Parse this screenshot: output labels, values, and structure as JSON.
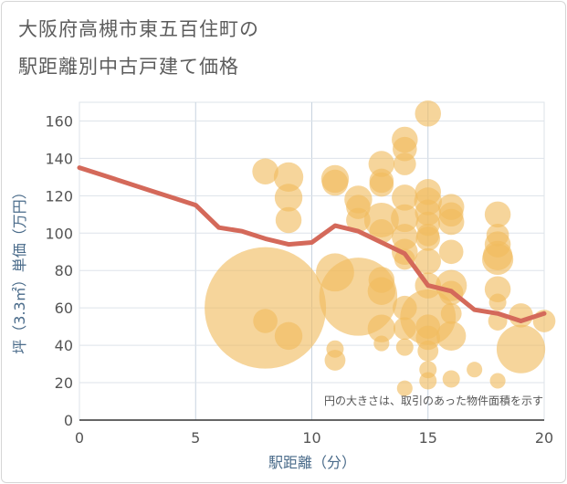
{
  "chart_data": {
    "type": "scatter",
    "title_line1": "大阪府高槻市東五百住町の",
    "title_line2": "駅距離別中古戸建て価格",
    "xlabel": "駅距離（分）",
    "ylabel": "坪（3.3㎡）単価（万円）",
    "xlim": [
      0,
      20
    ],
    "ylim": [
      0,
      170
    ],
    "xticks": [
      "0",
      "5",
      "10",
      "15",
      "20"
    ],
    "yticks": [
      "0",
      "20",
      "40",
      "60",
      "80",
      "100",
      "120",
      "140",
      "160"
    ],
    "xtick_values": [
      0,
      5,
      10,
      15,
      20
    ],
    "ytick_values": [
      0,
      20,
      40,
      60,
      80,
      100,
      120,
      140,
      160
    ],
    "note": "円の大きさは、取引のあった物件面積を示す",
    "bubble_color": "#f1bc5e",
    "line_color": "#d4695a",
    "bubbles": [
      {
        "x": 8,
        "y": 133,
        "s": 1.5
      },
      {
        "x": 8,
        "y": 60,
        "s": 7
      },
      {
        "x": 8,
        "y": 53,
        "s": 1.4
      },
      {
        "x": 9,
        "y": 130,
        "s": 1.7
      },
      {
        "x": 9,
        "y": 119,
        "s": 1.6
      },
      {
        "x": 9,
        "y": 107,
        "s": 1.5
      },
      {
        "x": 9,
        "y": 45,
        "s": 1.6
      },
      {
        "x": 11,
        "y": 129,
        "s": 1.6
      },
      {
        "x": 11,
        "y": 127,
        "s": 1.5
      },
      {
        "x": 11,
        "y": 79,
        "s": 2.2
      },
      {
        "x": 11,
        "y": 38,
        "s": 1.0
      },
      {
        "x": 11,
        "y": 32,
        "s": 1.2
      },
      {
        "x": 12,
        "y": 118,
        "s": 1.6
      },
      {
        "x": 12,
        "y": 114,
        "s": 1.4
      },
      {
        "x": 12,
        "y": 107,
        "s": 1.4
      },
      {
        "x": 12,
        "y": 66,
        "s": 4.5
      },
      {
        "x": 13,
        "y": 137,
        "s": 1.5
      },
      {
        "x": 13,
        "y": 128,
        "s": 1.4
      },
      {
        "x": 13,
        "y": 126,
        "s": 1.4
      },
      {
        "x": 13,
        "y": 107,
        "s": 2.0
      },
      {
        "x": 13,
        "y": 101,
        "s": 1.4
      },
      {
        "x": 13,
        "y": 75,
        "s": 1.5
      },
      {
        "x": 13,
        "y": 69,
        "s": 1.6
      },
      {
        "x": 13,
        "y": 49,
        "s": 1.6
      },
      {
        "x": 13,
        "y": 41,
        "s": 0.9
      },
      {
        "x": 14,
        "y": 150,
        "s": 1.5
      },
      {
        "x": 14,
        "y": 145,
        "s": 1.4
      },
      {
        "x": 14,
        "y": 137,
        "s": 1.3
      },
      {
        "x": 14,
        "y": 119,
        "s": 1.5
      },
      {
        "x": 14,
        "y": 108,
        "s": 1.6
      },
      {
        "x": 14,
        "y": 98,
        "s": 1.5
      },
      {
        "x": 14,
        "y": 90,
        "s": 1.5
      },
      {
        "x": 14,
        "y": 86,
        "s": 1.2
      },
      {
        "x": 14,
        "y": 60,
        "s": 1.4
      },
      {
        "x": 14,
        "y": 49,
        "s": 1.3
      },
      {
        "x": 14,
        "y": 39,
        "s": 1.0
      },
      {
        "x": 14,
        "y": 17,
        "s": 0.9
      },
      {
        "x": 15,
        "y": 164,
        "s": 1.5
      },
      {
        "x": 15,
        "y": 122,
        "s": 1.5
      },
      {
        "x": 15,
        "y": 117,
        "s": 1.6
      },
      {
        "x": 15,
        "y": 111,
        "s": 1.5
      },
      {
        "x": 15,
        "y": 105,
        "s": 1.4
      },
      {
        "x": 15,
        "y": 99,
        "s": 1.3
      },
      {
        "x": 15,
        "y": 97,
        "s": 1.4
      },
      {
        "x": 15,
        "y": 85,
        "s": 1.5
      },
      {
        "x": 15,
        "y": 72,
        "s": 1.5
      },
      {
        "x": 15,
        "y": 55,
        "s": 3.2
      },
      {
        "x": 15,
        "y": 50,
        "s": 1.4
      },
      {
        "x": 15,
        "y": 44,
        "s": 1.4
      },
      {
        "x": 15,
        "y": 37,
        "s": 1.2
      },
      {
        "x": 15,
        "y": 27,
        "s": 1.0
      },
      {
        "x": 15,
        "y": 21,
        "s": 1.0
      },
      {
        "x": 16,
        "y": 114,
        "s": 1.5
      },
      {
        "x": 16,
        "y": 110,
        "s": 1.4
      },
      {
        "x": 16,
        "y": 106,
        "s": 1.5
      },
      {
        "x": 16,
        "y": 90,
        "s": 1.4
      },
      {
        "x": 16,
        "y": 72,
        "s": 1.8
      },
      {
        "x": 16,
        "y": 68,
        "s": 1.4
      },
      {
        "x": 16,
        "y": 57,
        "s": 1.2
      },
      {
        "x": 16,
        "y": 45,
        "s": 1.7
      },
      {
        "x": 16,
        "y": 22,
        "s": 1.0
      },
      {
        "x": 17,
        "y": 27,
        "s": 0.9
      },
      {
        "x": 18,
        "y": 110,
        "s": 1.5
      },
      {
        "x": 18,
        "y": 99,
        "s": 1.3
      },
      {
        "x": 18,
        "y": 94,
        "s": 1.5
      },
      {
        "x": 18,
        "y": 88,
        "s": 1.7
      },
      {
        "x": 18,
        "y": 86,
        "s": 1.8
      },
      {
        "x": 18,
        "y": 70,
        "s": 1.5
      },
      {
        "x": 18,
        "y": 63,
        "s": 1.0
      },
      {
        "x": 18,
        "y": 53,
        "s": 1.1
      },
      {
        "x": 18,
        "y": 21,
        "s": 0.9
      },
      {
        "x": 19,
        "y": 56,
        "s": 1.4
      },
      {
        "x": 19,
        "y": 38,
        "s": 2.8
      },
      {
        "x": 20,
        "y": 53,
        "s": 1.3
      }
    ],
    "trend_line": [
      {
        "x": 0,
        "y": 135
      },
      {
        "x": 1,
        "y": 131
      },
      {
        "x": 2,
        "y": 127
      },
      {
        "x": 3,
        "y": 123
      },
      {
        "x": 4,
        "y": 119
      },
      {
        "x": 5,
        "y": 115
      },
      {
        "x": 6,
        "y": 103
      },
      {
        "x": 7,
        "y": 101
      },
      {
        "x": 8,
        "y": 97
      },
      {
        "x": 9,
        "y": 94
      },
      {
        "x": 10,
        "y": 95
      },
      {
        "x": 11,
        "y": 104
      },
      {
        "x": 12,
        "y": 101
      },
      {
        "x": 13,
        "y": 95
      },
      {
        "x": 14,
        "y": 89
      },
      {
        "x": 15,
        "y": 72
      },
      {
        "x": 16,
        "y": 69
      },
      {
        "x": 17,
        "y": 59
      },
      {
        "x": 18,
        "y": 57
      },
      {
        "x": 19,
        "y": 53
      },
      {
        "x": 20,
        "y": 57
      }
    ]
  }
}
